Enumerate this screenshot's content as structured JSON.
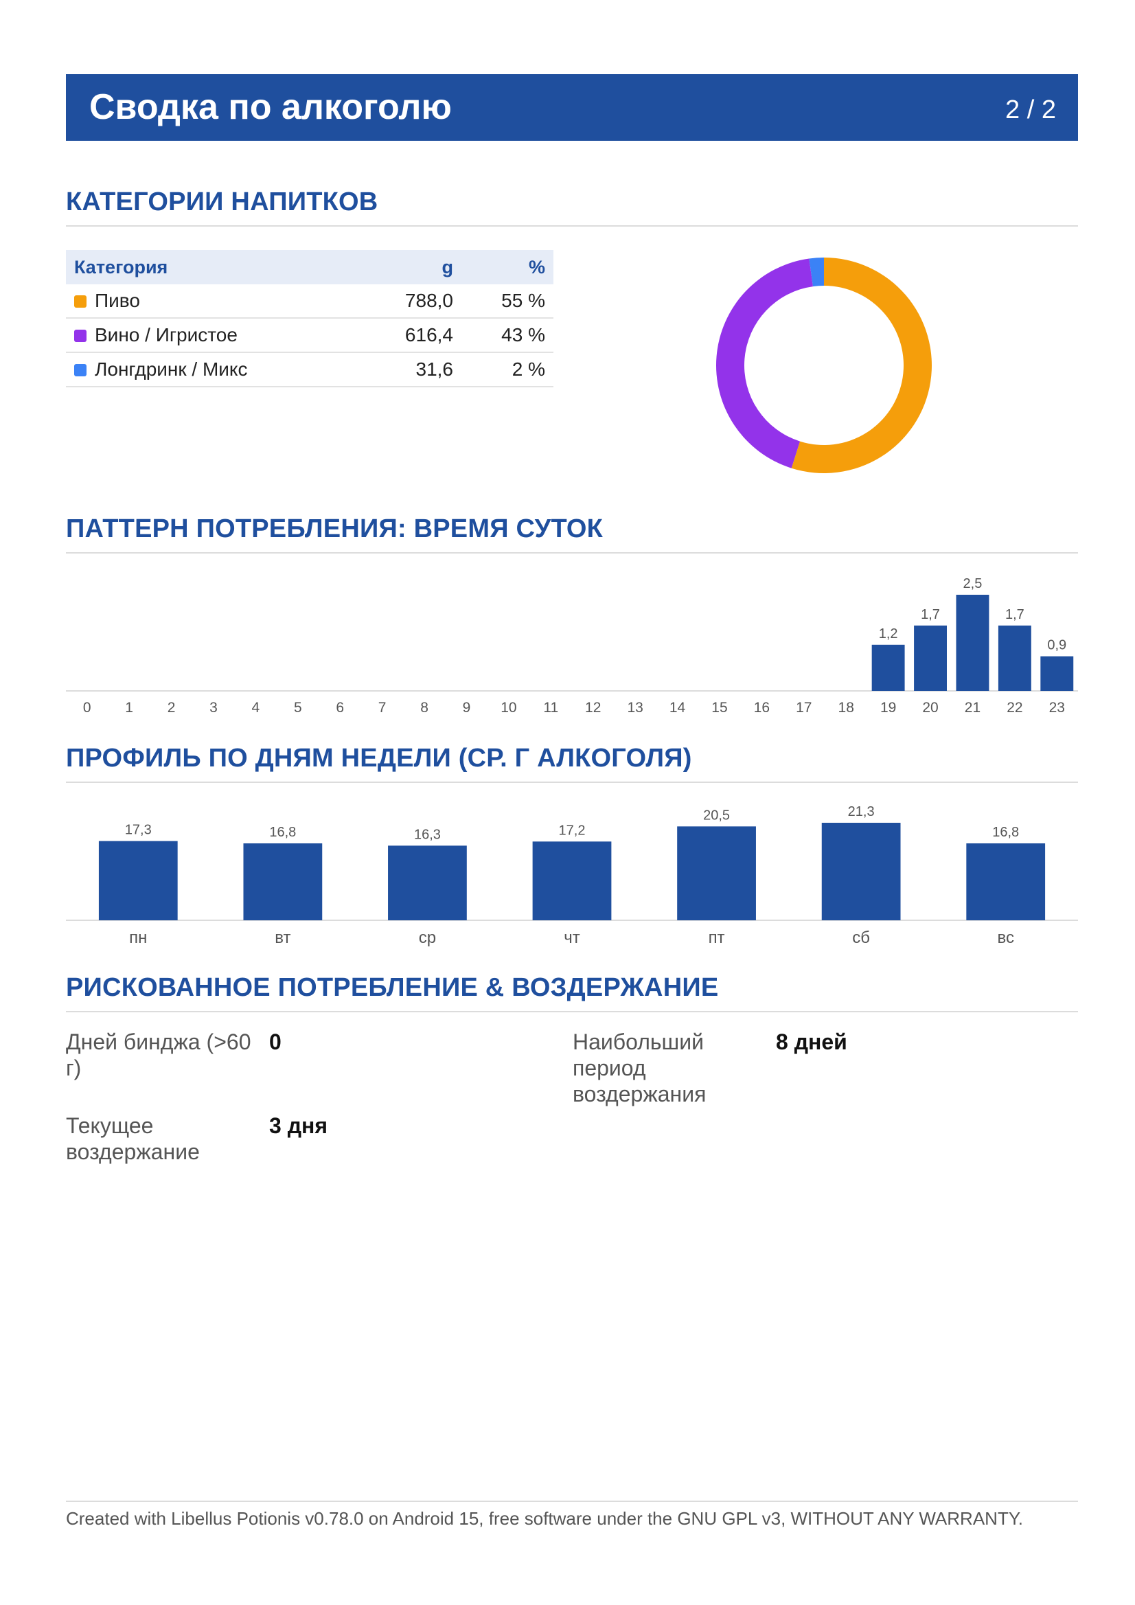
{
  "header": {
    "title": "Сводка по алкоголю",
    "page": "2 / 2"
  },
  "sections": {
    "categories": "КАТЕГОРИИ НАПИТКОВ",
    "time_of_day": "ПАТТЕРН ПОТРЕБЛЕНИЯ: ВРЕМЯ СУТОК",
    "weekday": "ПРОФИЛЬ ПО ДНЯМ НЕДЕЛИ (СР. Г АЛКОГОЛЯ)",
    "risk": "РИСКОВАННОЕ ПОТРЕБЛЕНИЕ & ВОЗДЕРЖАНИЕ"
  },
  "table": {
    "headers": {
      "category": "Категория",
      "grams": "g",
      "percent": "%"
    },
    "rows": [
      {
        "name": "Пиво",
        "grams": "788,0",
        "percent": "55 %",
        "color": "#f59e0b"
      },
      {
        "name": "Вино / Игристое",
        "grams": "616,4",
        "percent": "43 %",
        "color": "#9333ea"
      },
      {
        "name": "Лонгдринк / Микс",
        "grams": "31,6",
        "percent": "2 %",
        "color": "#3b82f6"
      }
    ]
  },
  "chart_data": [
    {
      "type": "pie",
      "categories": [
        "Пиво",
        "Вино / Игристое",
        "Лонгдринк / Микс"
      ],
      "values": [
        788.0,
        616.4,
        31.6
      ],
      "colors": [
        "#f59e0b",
        "#9333ea",
        "#3b82f6"
      ],
      "donut": true
    },
    {
      "type": "bar",
      "categories": [
        "0",
        "1",
        "2",
        "3",
        "4",
        "5",
        "6",
        "7",
        "8",
        "9",
        "10",
        "11",
        "12",
        "13",
        "14",
        "15",
        "16",
        "17",
        "18",
        "19",
        "20",
        "21",
        "22",
        "23"
      ],
      "values": [
        0,
        0,
        0,
        0,
        0,
        0,
        0,
        0,
        0,
        0,
        0,
        0,
        0,
        0,
        0,
        0,
        0,
        0,
        0,
        1.2,
        1.7,
        2.5,
        1.7,
        0.9
      ],
      "value_labels": [
        "",
        "",
        "",
        "",
        "",
        "",
        "",
        "",
        "",
        "",
        "",
        "",
        "",
        "",
        "",
        "",
        "",
        "",
        "",
        "1,2",
        "1,7",
        "2,5",
        "1,7",
        "0,9"
      ],
      "color": "#1f4f9e",
      "ylim": [
        0,
        2.5
      ]
    },
    {
      "type": "bar",
      "categories": [
        "пн",
        "вт",
        "ср",
        "чт",
        "пт",
        "сб",
        "вс"
      ],
      "values": [
        17.3,
        16.8,
        16.3,
        17.2,
        20.5,
        21.3,
        16.8
      ],
      "value_labels": [
        "17,3",
        "16,8",
        "16,3",
        "17,2",
        "20,5",
        "21,3",
        "16,8"
      ],
      "color": "#1f4f9e",
      "ylim": [
        0,
        21.3
      ]
    }
  ],
  "risk": {
    "binge_label": "Дней бинджа (>60 г)",
    "binge_value": "0",
    "longest_label": "Наибольший период воздержания",
    "longest_value": "8 дней",
    "current_label": "Текущее воздержание",
    "current_value": "3 дня"
  },
  "footer": "Created with Libellus Potionis v0.78.0 on Android 15, free software under the GNU GPL v3, WITHOUT ANY WARRANTY."
}
